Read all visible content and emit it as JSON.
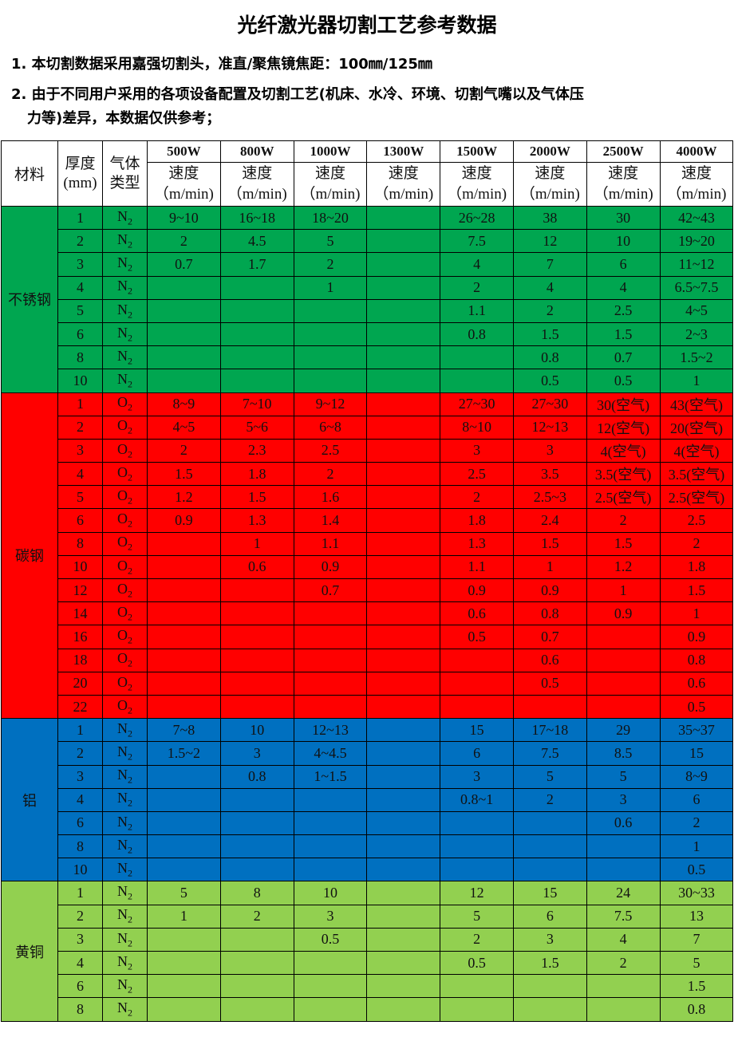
{
  "title": "光纤激光器切割工艺参考数据",
  "notes": [
    "1. 本切割数据采用嘉强切割头，准直/聚焦镜焦距：100㎜/125㎜",
    "2. 由于不同用户采用的各项设备配置及切割工艺(机床、水冷、环境、切割气嘴以及气体压",
    "力等)差异，本数据仅供参考；"
  ],
  "header": {
    "material": "材料",
    "thickness": "厚度(mm)",
    "gas": "气体类型",
    "powers": [
      "500W",
      "800W",
      "1000W",
      "1300W",
      "1500W",
      "2000W",
      "2500W",
      "4000W"
    ],
    "speed": "速度",
    "unit": "（m/min)"
  },
  "colors": {
    "stainless": "#00a650",
    "carbon": "#ff0000",
    "aluminum": "#0070c0",
    "brass": "#92d050"
  },
  "groups": [
    {
      "material": "不锈钢",
      "rows": [
        [
          "1",
          "N2",
          "9~10",
          "16~18",
          "18~20",
          "",
          "26~28",
          "38",
          "30",
          "42~43"
        ],
        [
          "2",
          "N2",
          "2",
          "4.5",
          "5",
          "",
          "7.5",
          "12",
          "10",
          "19~20"
        ],
        [
          "3",
          "N2",
          "0.7",
          "1.7",
          "2",
          "",
          "4",
          "7",
          "6",
          "11~12"
        ],
        [
          "4",
          "N2",
          "",
          "",
          "1",
          "",
          "2",
          "4",
          "4",
          "6.5~7.5"
        ],
        [
          "5",
          "N2",
          "",
          "",
          "",
          "",
          "1.1",
          "2",
          "2.5",
          "4~5"
        ],
        [
          "6",
          "N2",
          "",
          "",
          "",
          "",
          "0.8",
          "1.5",
          "1.5",
          "2~3"
        ],
        [
          "8",
          "N2",
          "",
          "",
          "",
          "",
          "",
          "0.8",
          "0.7",
          "1.5~2"
        ],
        [
          "10",
          "N2",
          "",
          "",
          "",
          "",
          "",
          "0.5",
          "0.5",
          "1"
        ]
      ]
    },
    {
      "material": "碳钢",
      "rows": [
        [
          "1",
          "O2",
          "8~9",
          "7~10",
          "9~12",
          "",
          "27~30",
          "27~30",
          "30(空气)",
          "43(空气)"
        ],
        [
          "2",
          "O2",
          "4~5",
          "5~6",
          "6~8",
          "",
          "8~10",
          "12~13",
          "12(空气)",
          "20(空气)"
        ],
        [
          "3",
          "O2",
          "2",
          "2.3",
          "2.5",
          "",
          "3",
          "3",
          "4(空气)",
          "4(空气)"
        ],
        [
          "4",
          "O2",
          "1.5",
          "1.8",
          "2",
          "",
          "2.5",
          "3.5",
          "3.5(空气)",
          "3.5(空气)"
        ],
        [
          "5",
          "O2",
          "1.2",
          "1.5",
          "1.6",
          "",
          "2",
          "2.5~3",
          "2.5(空气)",
          "2.5(空气)"
        ],
        [
          "6",
          "O2",
          "0.9",
          "1.3",
          "1.4",
          "",
          "1.8",
          "2.4",
          "2",
          "2.5"
        ],
        [
          "8",
          "O2",
          "",
          "1",
          "1.1",
          "",
          "1.3",
          "1.5",
          "1.5",
          "2"
        ],
        [
          "10",
          "O2",
          "",
          "0.6",
          "0.9",
          "",
          "1.1",
          "1",
          "1.2",
          "1.8"
        ],
        [
          "12",
          "O2",
          "",
          "",
          "0.7",
          "",
          "0.9",
          "0.9",
          "1",
          "1.5"
        ],
        [
          "14",
          "O2",
          "",
          "",
          "",
          "",
          "0.6",
          "0.8",
          "0.9",
          "1"
        ],
        [
          "16",
          "O2",
          "",
          "",
          "",
          "",
          "0.5",
          "0.7",
          "",
          "0.9"
        ],
        [
          "18",
          "O2",
          "",
          "",
          "",
          "",
          "",
          "0.6",
          "",
          "0.8"
        ],
        [
          "20",
          "O2",
          "",
          "",
          "",
          "",
          "",
          "0.5",
          "",
          "0.6"
        ],
        [
          "22",
          "O2",
          "",
          "",
          "",
          "",
          "",
          "",
          "",
          "0.5"
        ]
      ]
    },
    {
      "material": "铝",
      "rows": [
        [
          "1",
          "N2",
          "7~8",
          "10",
          "12~13",
          "",
          "15",
          "17~18",
          "29",
          "35~37"
        ],
        [
          "2",
          "N2",
          "1.5~2",
          "3",
          "4~4.5",
          "",
          "6",
          "7.5",
          "8.5",
          "15"
        ],
        [
          "3",
          "N2",
          "",
          "0.8",
          "1~1.5",
          "",
          "3",
          "5",
          "5",
          "8~9"
        ],
        [
          "4",
          "N2",
          "",
          "",
          "",
          "",
          "0.8~1",
          "2",
          "3",
          "6"
        ],
        [
          "6",
          "N2",
          "",
          "",
          "",
          "",
          "",
          "",
          "0.6",
          "2"
        ],
        [
          "8",
          "N2",
          "",
          "",
          "",
          "",
          "",
          "",
          "",
          "1"
        ],
        [
          "10",
          "N2",
          "",
          "",
          "",
          "",
          "",
          "",
          "",
          "0.5"
        ]
      ]
    },
    {
      "material": "黄铜",
      "rows": [
        [
          "1",
          "N2",
          "5",
          "8",
          "10",
          "",
          "12",
          "15",
          "24",
          "30~33"
        ],
        [
          "2",
          "N2",
          "1",
          "2",
          "3",
          "",
          "5",
          "6",
          "7.5",
          "13"
        ],
        [
          "3",
          "N2",
          "",
          "",
          "0.5",
          "",
          "2",
          "3",
          "4",
          "7"
        ],
        [
          "4",
          "N2",
          "",
          "",
          "",
          "",
          "0.5",
          "1.5",
          "2",
          "5"
        ],
        [
          "6",
          "N2",
          "",
          "",
          "",
          "",
          "",
          "",
          "",
          "1.5"
        ],
        [
          "8",
          "N2",
          "",
          "",
          "",
          "",
          "",
          "",
          "",
          "0.8"
        ]
      ]
    }
  ]
}
